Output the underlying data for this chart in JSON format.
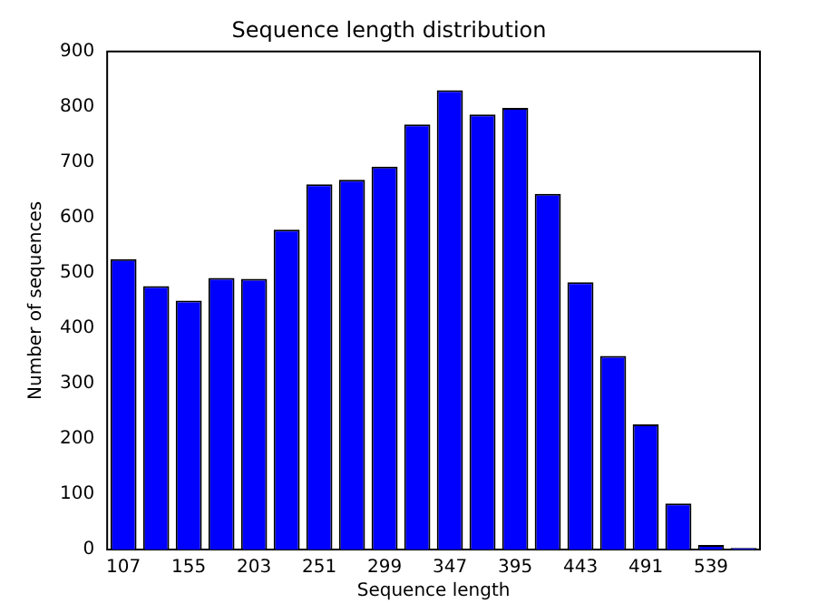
{
  "chart_data": {
    "type": "bar",
    "title": "Sequence length distribution",
    "xlabel": "Sequence length",
    "ylabel": "Number of sequences",
    "categories": [
      "107",
      null,
      "155",
      null,
      "203",
      null,
      "251",
      null,
      "299",
      null,
      "347",
      null,
      "395",
      null,
      "443",
      null,
      "491",
      null,
      "539",
      null
    ],
    "values": [
      525,
      476,
      450,
      491,
      489,
      578,
      660,
      668,
      692,
      768,
      830,
      786,
      798,
      643,
      483,
      350,
      226,
      83,
      8,
      3
    ],
    "color": "#0000ff",
    "ylim": [
      0,
      900
    ],
    "yticks": [
      0,
      100,
      200,
      300,
      400,
      500,
      600,
      700,
      800,
      900
    ],
    "grid": false,
    "legend": false
  }
}
